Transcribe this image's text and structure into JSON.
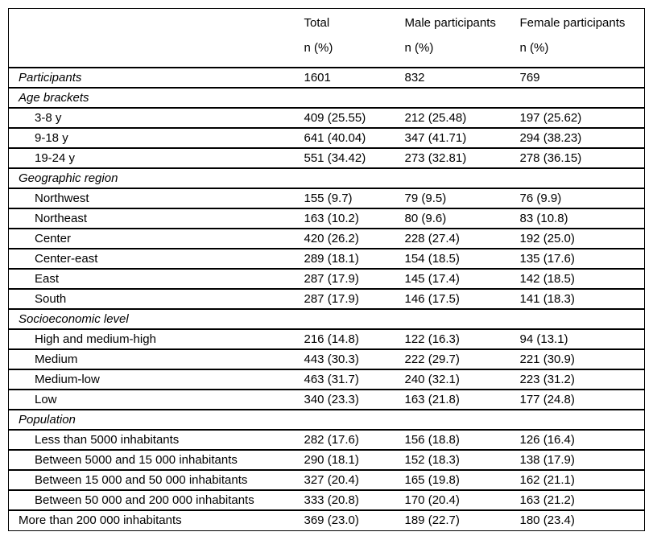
{
  "table": {
    "header": [
      {
        "label": "Total",
        "sublabel": "n (%)"
      },
      {
        "label": "Male participants",
        "sublabel": "n (%)"
      },
      {
        "label": "Female participants",
        "sublabel": "n (%)"
      }
    ],
    "rows": [
      {
        "label": "Participants",
        "italic": true,
        "indent": 0,
        "values": [
          "1601",
          "832",
          "769"
        ]
      },
      {
        "label": "Age brackets",
        "italic": true,
        "indent": 0,
        "values": [
          "",
          "",
          ""
        ]
      },
      {
        "label": "3-8 y",
        "italic": false,
        "indent": 1,
        "values": [
          "409 (25.55)",
          "212 (25.48)",
          "197 (25.62)"
        ]
      },
      {
        "label": "9-18 y",
        "italic": false,
        "indent": 1,
        "values": [
          "641 (40.04)",
          "347 (41.71)",
          "294 (38.23)"
        ]
      },
      {
        "label": "19-24 y",
        "italic": false,
        "indent": 1,
        "values": [
          "551 (34.42)",
          "273 (32.81)",
          "278 (36.15)"
        ]
      },
      {
        "label": "Geographic region",
        "italic": true,
        "indent": 0,
        "values": [
          "",
          "",
          ""
        ]
      },
      {
        "label": "Northwest",
        "italic": false,
        "indent": 1,
        "values": [
          "155 (9.7)",
          "79 (9.5)",
          "76 (9.9)"
        ]
      },
      {
        "label": "Northeast",
        "italic": false,
        "indent": 1,
        "values": [
          "163 (10.2)",
          "80 (9.6)",
          "83 (10.8)"
        ]
      },
      {
        "label": "Center",
        "italic": false,
        "indent": 1,
        "values": [
          "420 (26.2)",
          "228 (27.4)",
          "192 (25.0)"
        ]
      },
      {
        "label": "Center-east",
        "italic": false,
        "indent": 1,
        "values": [
          "289 (18.1)",
          "154 (18.5)",
          "135 (17.6)"
        ]
      },
      {
        "label": "East",
        "italic": false,
        "indent": 1,
        "values": [
          "287 (17.9)",
          "145 (17.4)",
          "142 (18.5)"
        ]
      },
      {
        "label": "South",
        "italic": false,
        "indent": 1,
        "values": [
          "287 (17.9)",
          "146 (17.5)",
          "141 (18.3)"
        ]
      },
      {
        "label": "Socioeconomic level",
        "italic": true,
        "indent": 0,
        "values": [
          "",
          "",
          ""
        ]
      },
      {
        "label": "High and medium-high",
        "italic": false,
        "indent": 1,
        "values": [
          "216 (14.8)",
          "122 (16.3)",
          "94 (13.1)"
        ]
      },
      {
        "label": "Medium",
        "italic": false,
        "indent": 1,
        "values": [
          "443 (30.3)",
          "222 (29.7)",
          "221 (30.9)"
        ]
      },
      {
        "label": "Medium-low",
        "italic": false,
        "indent": 1,
        "values": [
          "463 (31.7)",
          "240 (32.1)",
          "223 (31.2)"
        ]
      },
      {
        "label": "Low",
        "italic": false,
        "indent": 1,
        "values": [
          "340 (23.3)",
          "163 (21.8)",
          "177 (24.8)"
        ]
      },
      {
        "label": "Population",
        "italic": true,
        "indent": 0,
        "values": [
          "",
          "",
          ""
        ]
      },
      {
        "label": "Less than 5000 inhabitants",
        "italic": false,
        "indent": 1,
        "values": [
          "282 (17.6)",
          "156 (18.8)",
          "126 (16.4)"
        ]
      },
      {
        "label": "Between 5000 and 15 000 inhabitants",
        "italic": false,
        "indent": 1,
        "values": [
          "290 (18.1)",
          "152 (18.3)",
          "138 (17.9)"
        ]
      },
      {
        "label": "Between 15 000 and 50 000 inhabitants",
        "italic": false,
        "indent": 1,
        "values": [
          "327 (20.4)",
          "165 (19.8)",
          "162 (21.1)"
        ]
      },
      {
        "label": "Between 50 000 and 200 000 inhabitants",
        "italic": false,
        "indent": 1,
        "values": [
          "333 (20.8)",
          "170 (20.4)",
          "163 (21.2)"
        ]
      },
      {
        "label": "More than 200 000 inhabitants",
        "italic": false,
        "indent": 0,
        "values": [
          "369 (23.0)",
          "189 (22.7)",
          "180 (23.4)"
        ]
      }
    ],
    "colors": {
      "text": "#000000",
      "border": "#000000",
      "background": "#ffffff"
    }
  }
}
